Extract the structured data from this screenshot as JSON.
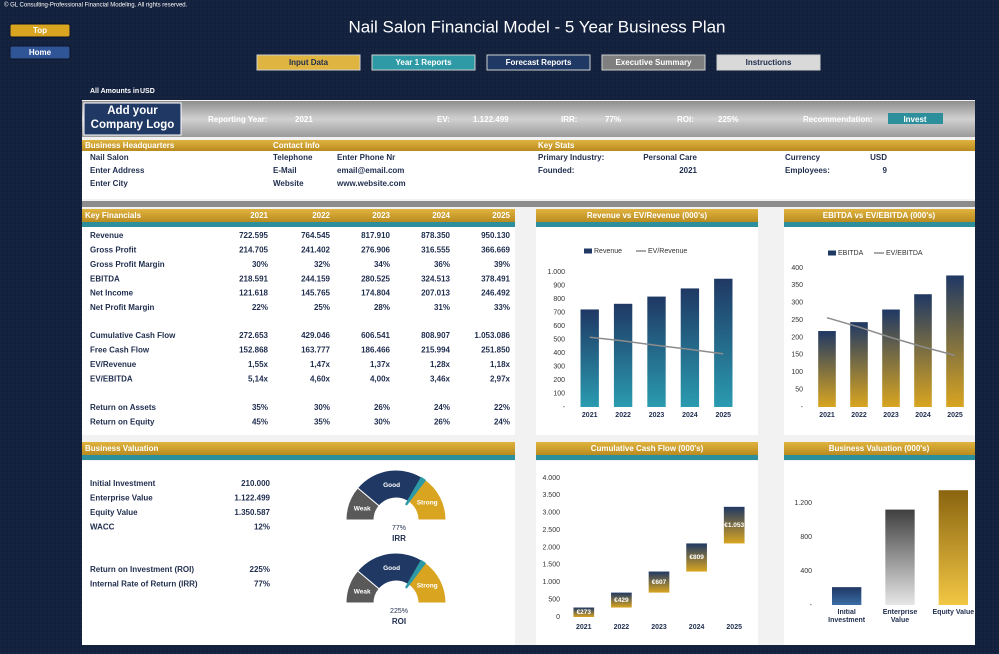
{
  "copyright": "© GL Consulting-Professional Financial Modeling. All rights reserved.",
  "nav": [
    "Top",
    "Home"
  ],
  "title": "Nail Salon Financial Model - 5 Year Business Plan",
  "tabs": [
    "Input Data",
    "Year 1 Reports",
    "Forecast Reports",
    "Executive Summary",
    "Instructions"
  ],
  "amounts": {
    "label": "All Amounts in",
    "currency": "USD"
  },
  "logo": "Add your Company Logo",
  "summary": [
    {
      "label": "Reporting Year:",
      "value": "2021"
    },
    {
      "label": "EV:",
      "value": "1.122.499"
    },
    {
      "label": "IRR:",
      "value": "77%"
    },
    {
      "label": "ROI:",
      "value": "225%"
    },
    {
      "label": "Recommendation:",
      "value": "Invest"
    }
  ],
  "headquarters": {
    "title": "Business Headquarters",
    "lines": [
      "Nail Salon",
      "Enter Address",
      "Enter City"
    ]
  },
  "contact": {
    "title": "Contact Info",
    "rows": [
      [
        "Telephone",
        "Enter Phone Nr"
      ],
      [
        "E-Mail",
        "email@email.com"
      ],
      [
        "Website",
        "www.website.com"
      ]
    ]
  },
  "key_stats": {
    "title": "Key Stats",
    "rows": [
      [
        "Primary Industry:",
        "Personal Care",
        "Currency",
        "USD"
      ],
      [
        "Founded:",
        "2021",
        "Employees:",
        "9"
      ]
    ]
  },
  "key_financials": {
    "header": [
      "Key Financials",
      "2021",
      "2022",
      "2023",
      "2024",
      "2025"
    ],
    "groups": [
      [
        [
          "Revenue",
          "722.595",
          "764.545",
          "817.910",
          "878.350",
          "950.130"
        ],
        [
          "Gross Profit",
          "214.705",
          "241.402",
          "276.906",
          "316.555",
          "366.669"
        ],
        [
          "Gross Profit Margin",
          "30%",
          "32%",
          "34%",
          "36%",
          "39%"
        ],
        [
          "EBITDA",
          "218.591",
          "244.159",
          "280.525",
          "324.513",
          "378.491"
        ],
        [
          "Net Income",
          "121.618",
          "145.765",
          "174.804",
          "207.013",
          "246.492"
        ],
        [
          "Net Profit Margin",
          "22%",
          "25%",
          "28%",
          "31%",
          "33%"
        ]
      ],
      [
        [
          "Cumulative Cash Flow",
          "272.653",
          "429.046",
          "606.541",
          "808.907",
          "1.053.086"
        ],
        [
          "Free Cash Flow",
          "152.868",
          "163.777",
          "186.466",
          "215.994",
          "251.850"
        ],
        [
          "EV/Revenue",
          "1,55x",
          "1,47x",
          "1,37x",
          "1,28x",
          "1,18x"
        ],
        [
          "EV/EBITDA",
          "5,14x",
          "4,60x",
          "4,00x",
          "3,46x",
          "2,97x"
        ]
      ],
      [
        [
          "Return on Assets",
          "35%",
          "30%",
          "26%",
          "24%",
          "22%"
        ],
        [
          "Return on Equity",
          "45%",
          "35%",
          "30%",
          "26%",
          "24%"
        ]
      ]
    ]
  },
  "valuation": {
    "title": "Business Valuation",
    "groups": [
      [
        [
          "Initial Investment",
          "210.000"
        ],
        [
          "Enterprise Value",
          "1.122.499"
        ],
        [
          "Equity Value",
          "1.350.587"
        ],
        [
          "WACC",
          "12%"
        ]
      ],
      [
        [
          "Return on Investment (ROI)",
          "225%"
        ],
        [
          "Internal Rate of Return (IRR)",
          "77%"
        ]
      ]
    ]
  },
  "gauges": [
    {
      "labels": [
        "Weak",
        "Good",
        "Strong"
      ],
      "value": "77%",
      "title": "IRR"
    },
    {
      "labels": [
        "Weak",
        "Good",
        "Strong"
      ],
      "value": "225%",
      "title": "ROI"
    }
  ],
  "chart_data": [
    {
      "type": "bar",
      "title": "Revenue vs EV/Revenue (000's)",
      "categories": [
        "2021",
        "2022",
        "2023",
        "2024",
        "2025"
      ],
      "series": [
        {
          "name": "Revenue",
          "type": "bar",
          "color": "#1f3864",
          "color2": "#2a9bb0",
          "values": [
            722.595,
            764.545,
            817.91,
            878.35,
            950.13
          ]
        },
        {
          "name": "EV/Revenue",
          "type": "line",
          "axis": "y2",
          "color": "#8c8c8c",
          "values": [
            1.55,
            1.47,
            1.37,
            1.28,
            1.18
          ]
        }
      ],
      "ylim": [
        0,
        1000
      ],
      "yticks": [
        {
          "value": 0,
          "label": "-"
        },
        100,
        200,
        300,
        400,
        500,
        600,
        700,
        800,
        900,
        {
          "value": 1000,
          "label": "1.000"
        }
      ],
      "y2lim": [
        0,
        3
      ]
    },
    {
      "type": "bar",
      "title": "EBITDA vs EV/EBITDA (000's)",
      "categories": [
        "2021",
        "2022",
        "2023",
        "2024",
        "2025"
      ],
      "series": [
        {
          "name": "EBITDA",
          "type": "bar",
          "color": "#1f3864",
          "color2": "#d9a520",
          "values": [
            218.591,
            244.159,
            280.525,
            324.513,
            378.491
          ]
        },
        {
          "name": "EV/EBITDA",
          "type": "line",
          "axis": "y2",
          "color": "#8c8c8c",
          "values": [
            5.14,
            4.6,
            4.0,
            3.46,
            2.97
          ]
        }
      ],
      "ylim": [
        0,
        400
      ],
      "yticks": [
        {
          "value": 0,
          "label": "-"
        },
        50,
        100,
        150,
        200,
        250,
        300,
        350,
        400
      ],
      "y2lim": [
        0,
        8
      ]
    },
    {
      "type": "waterfall",
      "title": "Cumulative Cash Flow (000's)",
      "categories": [
        "2021",
        "2022",
        "2023",
        "2024",
        "2025"
      ],
      "values": [
        272.653,
        429.046,
        606.541,
        808.907,
        1053.086
      ],
      "value_labels": [
        "€273",
        "€429",
        "€607",
        "€809",
        "€1.053"
      ],
      "color": "#1f3864",
      "color2": "#d9a520",
      "ylim": [
        0,
        4000
      ],
      "yticks": [
        0,
        500,
        {
          "value": 1000,
          "label": "1.000"
        },
        {
          "value": 1500,
          "label": "1.500"
        },
        {
          "value": 2000,
          "label": "2.000"
        },
        {
          "value": 2500,
          "label": "2.500"
        },
        {
          "value": 3000,
          "label": "3.000"
        },
        {
          "value": 3500,
          "label": "3.500"
        },
        {
          "value": 4000,
          "label": "4.000"
        }
      ]
    },
    {
      "type": "bar",
      "title": "Business Valuation (000's)",
      "categories": [
        "Initial Investment",
        "Enterprise Value",
        "Equity Value"
      ],
      "values": [
        210.0,
        1122.499,
        1350.587
      ],
      "colors": [
        [
          "#1f3864",
          "#3a6ea5"
        ],
        [
          "#3f3f3f",
          "#e6e6e6"
        ],
        [
          "#8a6410",
          "#f2c744"
        ]
      ],
      "ylim": [
        0,
        1400
      ],
      "yticks": [
        {
          "value": 0,
          "label": "-"
        },
        400,
        800,
        {
          "value": 1200,
          "label": "1.200"
        }
      ]
    }
  ]
}
